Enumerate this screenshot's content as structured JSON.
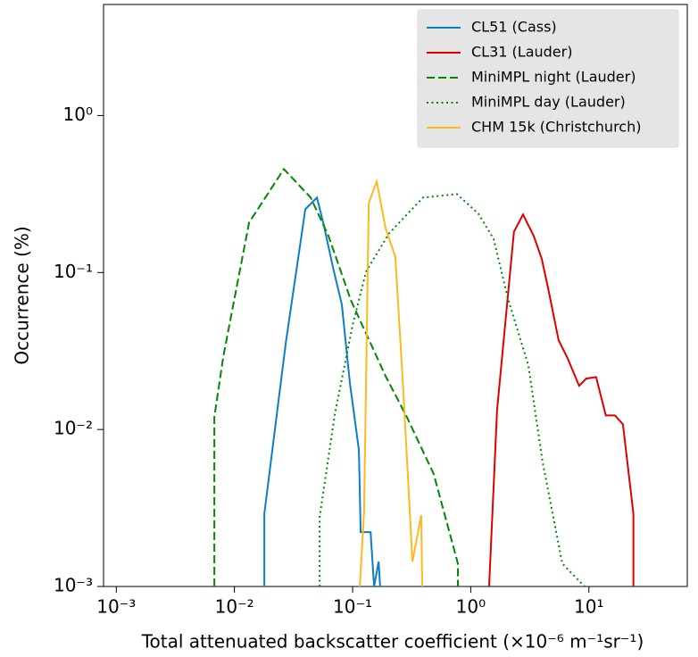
{
  "chart_data": {
    "type": "line",
    "xlabel": "Total attenuated backscatter coefficient (×10⁻⁶ m⁻¹sr⁻¹)",
    "ylabel": "Occurrence (%)",
    "xscale": "log",
    "yscale": "log",
    "xlim": [
      0.00078,
      68
    ],
    "ylim": [
      0.001,
      5.1
    ],
    "xticks": [
      {
        "value": 0.001,
        "label": "10⁻³"
      },
      {
        "value": 0.01,
        "label": "10⁻²"
      },
      {
        "value": 0.1,
        "label": "10⁻¹"
      },
      {
        "value": 1,
        "label": "10⁰"
      },
      {
        "value": 10,
        "label": "10¹"
      }
    ],
    "yticks": [
      {
        "value": 0.001,
        "label": "10⁻³"
      },
      {
        "value": 0.01,
        "label": "10⁻²"
      },
      {
        "value": 0.1,
        "label": "10⁻¹"
      },
      {
        "value": 1,
        "label": "10⁰"
      }
    ],
    "grid": false,
    "legend": "upper right",
    "series": [
      {
        "name": "CL51 (Cass)",
        "color": "#0a7fc4",
        "linestyle": "solid",
        "x": [
          0.0179,
          0.0179,
          0.0272,
          0.0398,
          0.0499,
          0.0564,
          0.0682,
          0.0811,
          0.0949,
          0.113,
          0.117,
          0.142,
          0.152,
          0.166,
          0.171
        ],
        "values": [
          0.001,
          0.0029,
          0.0356,
          0.253,
          0.3,
          0.208,
          0.108,
          0.0624,
          0.0197,
          0.0074,
          0.00222,
          0.00222,
          0.001,
          0.00144,
          0.001
        ]
      },
      {
        "name": "CL31 (Lauder)",
        "color": "#dd0000",
        "linestyle": "solid",
        "x": [
          1.43,
          1.67,
          2.32,
          2.77,
          3.41,
          3.98,
          4.57,
          5.54,
          6.59,
          8.26,
          9.49,
          11.5,
          13.9,
          16.6,
          19.4,
          23.8,
          23.8
        ],
        "values": [
          0.001,
          0.0133,
          0.182,
          0.234,
          0.171,
          0.123,
          0.076,
          0.037,
          0.0285,
          0.019,
          0.0211,
          0.0216,
          0.0123,
          0.0123,
          0.0108,
          0.0029,
          0.001
        ]
      },
      {
        "name": "MiniMPL night (Lauder)",
        "color": "#008800",
        "linestyle": "dashed",
        "x": [
          0.00676,
          0.00676,
          0.00805,
          0.0133,
          0.0262,
          0.0442,
          0.0625,
          0.0966,
          0.19,
          0.288,
          0.486,
          0.778,
          0.778
        ],
        "values": [
          0.001,
          0.012,
          0.0292,
          0.208,
          0.456,
          0.3,
          0.171,
          0.0667,
          0.0219,
          0.012,
          0.0052,
          0.0014,
          0.001
        ]
      },
      {
        "name": "MiniMPL day (Lauder)",
        "color": "#008800",
        "linestyle": "dotted",
        "x": [
          0.0526,
          0.0526,
          0.0707,
          0.1,
          0.13,
          0.204,
          0.394,
          0.764,
          1.16,
          1.56,
          2.06,
          3.07,
          4.05,
          5.95,
          9.17
        ],
        "values": [
          0.001,
          0.00277,
          0.0125,
          0.0462,
          0.1014,
          0.178,
          0.3,
          0.316,
          0.237,
          0.164,
          0.0685,
          0.0257,
          0.00624,
          0.0014,
          0.001
        ]
      },
      {
        "name": "CHM 15k (Christchurch)",
        "color": "#ffb820",
        "linestyle": "solid",
        "x": [
          0.115,
          0.125,
          0.137,
          0.16,
          0.19,
          0.23,
          0.269,
          0.321,
          0.381,
          0.388
        ],
        "values": [
          0.001,
          0.00296,
          0.277,
          0.38,
          0.192,
          0.126,
          0.0173,
          0.00144,
          0.00285,
          0.001
        ]
      }
    ]
  }
}
